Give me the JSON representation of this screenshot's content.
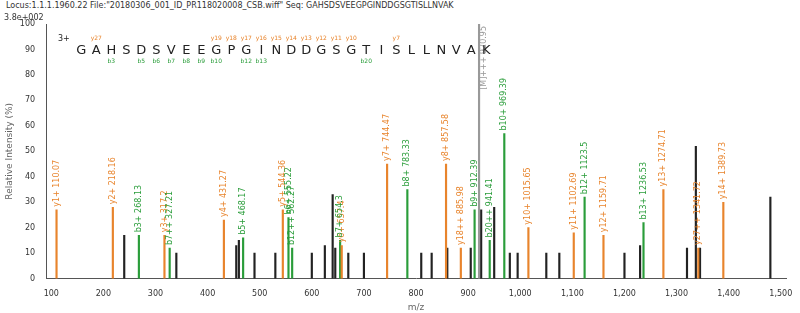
{
  "chart_data": {
    "type": "bar",
    "title": "Locus:1.1.1.1960.22 File:\"20180306_001_ID_PR118020008_CSB.wiff\"",
    "subtitle": "Seq: GAHSDSVEEGPGINDDGSGTISLLNVAK",
    "x_label": "m/z",
    "y_label": "Relative Intensity (%)",
    "y_scale_label": "3.8e+002",
    "xlim": [
      90,
      1510
    ],
    "xticks": [
      100,
      200,
      300,
      400,
      500,
      600,
      700,
      800,
      900,
      1000,
      1100,
      1200,
      1300,
      1400,
      1500
    ],
    "ylim": [
      0,
      100
    ],
    "yticks": [
      0,
      10,
      20,
      30,
      40,
      50,
      60,
      70,
      80,
      90,
      100
    ],
    "grid": false,
    "sequence": {
      "charge": "3+",
      "residues": "GAHSDSVEEGPGINDDGSGTISLLNVAK",
      "y_ions": [
        {
          "label": "y27",
          "position": 1
        },
        {
          "label": "y19",
          "position": 9
        },
        {
          "label": "y18",
          "position": 10
        },
        {
          "label": "y17",
          "position": 11
        },
        {
          "label": "y16",
          "position": 12
        },
        {
          "label": "y15",
          "position": 13
        },
        {
          "label": "y14",
          "position": 14
        },
        {
          "label": "y13",
          "position": 15
        },
        {
          "label": "y12",
          "position": 16
        },
        {
          "label": "y11",
          "position": 17
        },
        {
          "label": "y10",
          "position": 18
        },
        {
          "label": "y7",
          "position": 21
        }
      ],
      "b_ions": [
        {
          "label": "b3",
          "position": 2
        },
        {
          "label": "b5",
          "position": 4
        },
        {
          "label": "b6",
          "position": 5
        },
        {
          "label": "b7",
          "position": 6
        },
        {
          "label": "b8",
          "position": 7
        },
        {
          "label": "b9",
          "position": 8
        },
        {
          "label": "b10",
          "position": 9
        },
        {
          "label": "b12",
          "position": 11
        },
        {
          "label": "b13",
          "position": 12
        },
        {
          "label": "b20",
          "position": 19
        }
      ]
    },
    "series": [
      {
        "color": "#e8842c",
        "x": [
          110.07,
          218.16,
          317.2,
          431.27,
          544.36,
          657.4,
          744.47,
          857.58,
          885.98,
          1015.65,
          1102.69,
          1159.71,
          1274.71,
          1341.72,
          1389.73
        ],
        "values": [
          27,
          28,
          17,
          23,
          27,
          13,
          45,
          45,
          12,
          20,
          18,
          17,
          35,
          12,
          30
        ],
        "peak_labels": [
          "y1+ 110.07",
          "y2+ 218.16",
          "y3+ 317.2",
          "y4+ 431.27",
          "y5+ 544.36",
          "y6+ 657.4",
          "y7+ 744.47",
          "y8+ 857.58",
          "y18++ 885.98",
          "y10+ 1015.65",
          "y11+ 1102.69",
          "y12+ 1159.71",
          "y13+ 1274.71",
          "y27++ 1341.72",
          "y14+ 1389.73"
        ]
      },
      {
        "color": "#2a9d3a",
        "x": [
          268.13,
          327.21,
          468.17,
          555.22,
          562.27,
          654.3,
          783.33,
          912.39,
          941.41,
          969.39,
          1123.5,
          1236.53
        ],
        "values": [
          17,
          12,
          16,
          24,
          12,
          15,
          35,
          27,
          15,
          57,
          32,
          22
        ],
        "peak_labels": [
          "b3+ 268.13",
          "b7++ 327.21",
          "b5+ 468.17",
          "b6+ 555.22",
          "b12++ 562.27",
          "b7+ 654.3",
          "b8+ 783.33",
          "b9+ 912.39",
          "b20++ 941.41",
          "b10+ 969.39",
          "b12+ 1123.5",
          "b13+ 1236.53"
        ]
      },
      {
        "color": "#999999",
        "x": [
          920.95
        ],
        "values": [
          100
        ],
        "peak_labels": [
          "[M]+++ 920.95"
        ]
      },
      {
        "color": "#222222",
        "x": [
          240,
          340,
          455,
          460,
          490,
          530,
          600,
          625,
          640,
          645,
          670,
          700,
          810,
          830,
          860,
          905,
          925,
          950,
          980,
          995,
          1050,
          1075,
          1200,
          1230,
          1320,
          1337,
          1345,
          1480
        ],
        "values": [
          17,
          10,
          13,
          15,
          10,
          10,
          10,
          13,
          33,
          12,
          10,
          10,
          10,
          10,
          12,
          12,
          27,
          28,
          10,
          10,
          10,
          10,
          10,
          13,
          12,
          52,
          12,
          32
        ]
      }
    ]
  }
}
